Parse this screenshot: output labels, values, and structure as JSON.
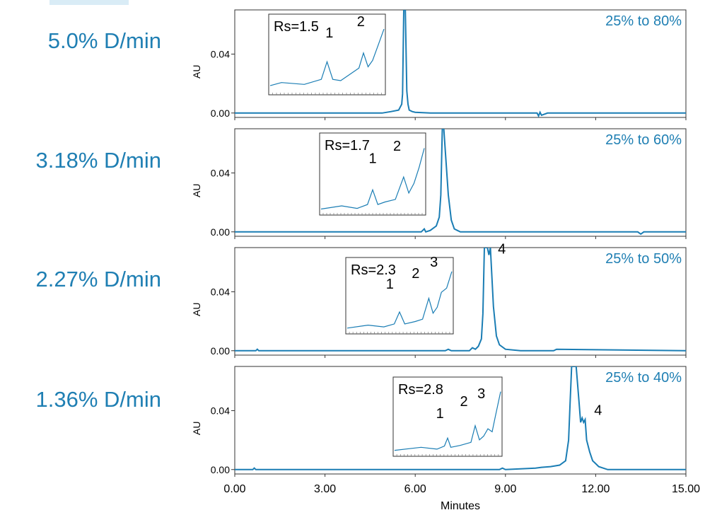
{
  "x_axis": {
    "label": "Minutes",
    "ticks": [
      "0.00",
      "3.00",
      "6.00",
      "9.00",
      "12.00",
      "15.00"
    ]
  },
  "colors": {
    "trace": "#1a7db4",
    "gradient_label": "#1f7fb3",
    "axis": "#333333"
  },
  "chart_data": [
    {
      "type": "line",
      "rate_label": "5.0% D/min",
      "range_label": "25% to 80%",
      "ylabel": "AU",
      "y_ticks": [
        "0.00",
        "0.04"
      ],
      "xlim": [
        0,
        15
      ],
      "ylim": [
        -0.003,
        0.07
      ],
      "series": [
        {
          "x": [
            0.0,
            4.9,
            5.2,
            5.45,
            5.55,
            5.58,
            5.62,
            5.67,
            5.72,
            5.76,
            5.8,
            5.9,
            6.0,
            6.5,
            8.0,
            10.05,
            10.1,
            10.15,
            10.2,
            10.4,
            12.0,
            15.0
          ],
          "y": [
            0.0,
            0.0,
            0.001,
            0.002,
            0.006,
            0.013,
            0.07,
            0.07,
            0.015,
            0.006,
            0.002,
            0.001,
            0.0005,
            0.0,
            0.0,
            0.0,
            -0.002,
            0.0005,
            -0.0015,
            0.0,
            0.0,
            0.0
          ]
        }
      ],
      "inset": {
        "resolution": "Rs=1.5",
        "peaks": [
          "1",
          "2"
        ],
        "trace_x": [
          0,
          0.1,
          0.3,
          0.45,
          0.5,
          0.55,
          0.62,
          0.7,
          0.78,
          0.82,
          0.86,
          0.9,
          0.95,
          1.0
        ],
        "trace_y": [
          0.1,
          0.15,
          0.12,
          0.2,
          0.48,
          0.2,
          0.18,
          0.28,
          0.38,
          0.62,
          0.4,
          0.5,
          0.75,
          1.0
        ]
      }
    },
    {
      "type": "line",
      "rate_label": "3.18% D/min",
      "range_label": "25% to 60%",
      "ylabel": "AU",
      "y_ticks": [
        "0.00",
        "0.04"
      ],
      "xlim": [
        0,
        15
      ],
      "ylim": [
        -0.003,
        0.07
      ],
      "series": [
        {
          "x": [
            0.0,
            6.2,
            6.3,
            6.35,
            6.5,
            6.7,
            6.8,
            6.85,
            6.9,
            6.95,
            7.1,
            7.2,
            7.3,
            7.4,
            7.5,
            9.0,
            13.4,
            13.5,
            13.6,
            15.0
          ],
          "y": [
            0.0,
            0.0,
            0.002,
            0.0,
            0.001,
            0.004,
            0.01,
            0.025,
            0.07,
            0.07,
            0.025,
            0.008,
            0.002,
            0.001,
            0.0,
            0.0,
            0.0,
            -0.0015,
            0.0,
            0.0
          ]
        }
      ],
      "inset": {
        "resolution": "Rs=1.7",
        "peaks": [
          "1",
          "2"
        ],
        "trace_x": [
          0,
          0.2,
          0.35,
          0.45,
          0.5,
          0.55,
          0.62,
          0.72,
          0.8,
          0.85,
          0.9,
          0.95,
          1.0
        ],
        "trace_y": [
          0.05,
          0.1,
          0.06,
          0.12,
          0.35,
          0.12,
          0.16,
          0.2,
          0.55,
          0.3,
          0.45,
          0.7,
          1.0
        ]
      }
    },
    {
      "type": "line",
      "rate_label": "2.27% D/min",
      "range_label": "25% to 50%",
      "ylabel": "AU",
      "y_ticks": [
        "0.00",
        "0.04"
      ],
      "xlim": [
        0,
        15
      ],
      "ylim": [
        -0.003,
        0.07
      ],
      "series": [
        {
          "x": [
            0.0,
            0.7,
            0.75,
            0.8,
            7.0,
            7.1,
            7.2,
            7.8,
            7.9,
            8.0,
            8.1,
            8.2,
            8.25,
            8.3,
            8.35,
            8.4,
            8.45,
            8.5,
            8.6,
            8.7,
            8.8,
            9.0,
            9.5,
            10.6,
            10.7,
            15.0
          ],
          "y": [
            0.0,
            0.0,
            0.001,
            0.0,
            0.0,
            0.001,
            0.0,
            0.0,
            0.002,
            0.001,
            0.003,
            0.008,
            0.025,
            0.07,
            0.07,
            0.07,
            0.065,
            0.07,
            0.03,
            0.01,
            0.004,
            0.001,
            0.0,
            0.0,
            0.001,
            0.0
          ]
        }
      ],
      "annotations": [
        {
          "text": "4",
          "x": 8.75,
          "y": 0.066
        }
      ],
      "inset": {
        "resolution": "Rs=2.3",
        "peaks": [
          "1",
          "2",
          "3"
        ],
        "trace_x": [
          0,
          0.2,
          0.35,
          0.45,
          0.5,
          0.55,
          0.65,
          0.72,
          0.78,
          0.82,
          0.86,
          0.9,
          0.95,
          1.0
        ],
        "trace_y": [
          0.05,
          0.1,
          0.07,
          0.12,
          0.32,
          0.12,
          0.16,
          0.2,
          0.55,
          0.3,
          0.4,
          0.65,
          0.72,
          1.0
        ]
      }
    },
    {
      "type": "line",
      "rate_label": "1.36% D/min",
      "range_label": "25% to 40%",
      "ylabel": "AU",
      "y_ticks": [
        "0.00",
        "0.04"
      ],
      "xlim": [
        0,
        15
      ],
      "ylim": [
        -0.003,
        0.07
      ],
      "series": [
        {
          "x": [
            0.0,
            0.6,
            0.65,
            0.7,
            8.8,
            8.9,
            9.0,
            10.0,
            10.2,
            10.5,
            10.8,
            11.0,
            11.1,
            11.15,
            11.2,
            11.35,
            11.45,
            11.5,
            11.55,
            11.6,
            11.65,
            11.7,
            11.8,
            11.9,
            12.0,
            12.1,
            12.4,
            15.0
          ],
          "y": [
            0.0,
            0.0,
            0.001,
            0.0,
            0.0,
            0.001,
            0.0,
            0.001,
            0.0015,
            0.002,
            0.003,
            0.006,
            0.02,
            0.045,
            0.07,
            0.07,
            0.045,
            0.032,
            0.035,
            0.032,
            0.034,
            0.02,
            0.012,
            0.006,
            0.004,
            0.002,
            0.0,
            0.0
          ]
        }
      ],
      "annotations": [
        {
          "text": "4",
          "x": 11.95,
          "y": 0.037
        }
      ],
      "inset": {
        "resolution": "Rs=2.8",
        "peaks": [
          "1",
          "2",
          "3"
        ],
        "trace_x": [
          0,
          0.25,
          0.4,
          0.47,
          0.5,
          0.53,
          0.62,
          0.72,
          0.76,
          0.8,
          0.84,
          0.88,
          0.92,
          0.95,
          1.0
        ],
        "trace_y": [
          0.05,
          0.1,
          0.07,
          0.12,
          0.25,
          0.1,
          0.13,
          0.18,
          0.45,
          0.22,
          0.28,
          0.4,
          0.35,
          0.6,
          1.0
        ]
      }
    }
  ]
}
